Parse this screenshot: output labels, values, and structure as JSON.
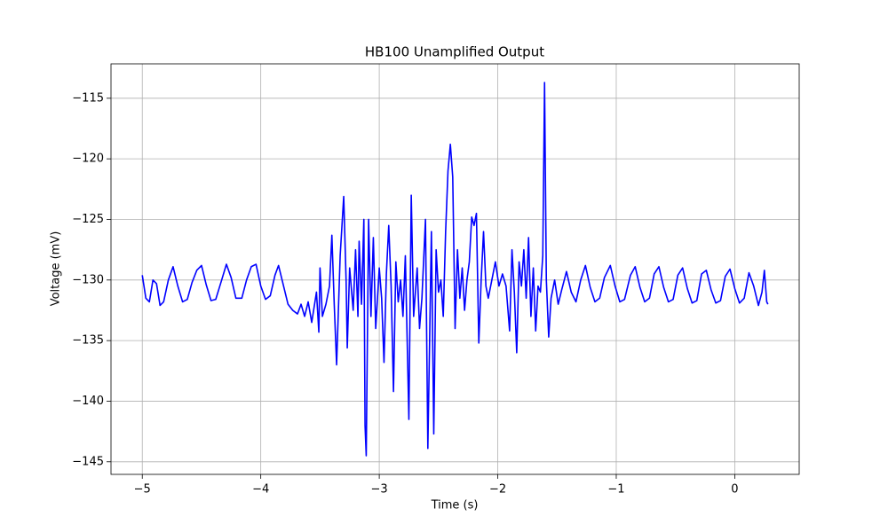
{
  "chart_data": {
    "type": "line",
    "title": "HB100 Unamplified Output",
    "x_label": "Time (s)",
    "y_label": "Voltage (mV)",
    "xlim": [
      -5.264,
      0.544
    ],
    "ylim": [
      -146.04,
      -112.16
    ],
    "xticks": [
      {
        "value": -5,
        "label": "−5"
      },
      {
        "value": -4,
        "label": "−4"
      },
      {
        "value": -3,
        "label": "−3"
      },
      {
        "value": -2,
        "label": "−2"
      },
      {
        "value": -1,
        "label": "−1"
      },
      0
    ],
    "yticks": [
      {
        "value": -145,
        "label": "−145"
      },
      {
        "value": -140,
        "label": "−140"
      },
      {
        "value": -135,
        "label": "−135"
      },
      {
        "value": -130,
        "label": "−130"
      },
      {
        "value": -125,
        "label": "−125"
      },
      {
        "value": -120,
        "label": "−120"
      },
      {
        "value": -115,
        "label": "−115"
      }
    ],
    "grid": true,
    "x": [
      -5.0,
      -4.97,
      -4.94,
      -4.91,
      -4.88,
      -4.85,
      -4.82,
      -4.78,
      -4.74,
      -4.7,
      -4.66,
      -4.62,
      -4.58,
      -4.54,
      -4.5,
      -4.46,
      -4.42,
      -4.38,
      -4.33,
      -4.29,
      -4.25,
      -4.21,
      -4.16,
      -4.12,
      -4.08,
      -4.04,
      -4.0,
      -3.96,
      -3.92,
      -3.88,
      -3.85,
      -3.81,
      -3.77,
      -3.73,
      -3.69,
      -3.66,
      -3.63,
      -3.6,
      -3.57,
      -3.53,
      -3.51,
      -3.5,
      -3.48,
      -3.45,
      -3.42,
      -3.4,
      -3.38,
      -3.36,
      -3.33,
      -3.3,
      -3.28,
      -3.27,
      -3.25,
      -3.22,
      -3.2,
      -3.18,
      -3.17,
      -3.15,
      -3.13,
      -3.12,
      -3.11,
      -3.09,
      -3.07,
      -3.05,
      -3.03,
      -3.0,
      -2.98,
      -2.96,
      -2.94,
      -2.92,
      -2.9,
      -2.88,
      -2.86,
      -2.84,
      -2.82,
      -2.8,
      -2.78,
      -2.75,
      -2.73,
      -2.71,
      -2.68,
      -2.66,
      -2.64,
      -2.61,
      -2.59,
      -2.56,
      -2.54,
      -2.52,
      -2.5,
      -2.48,
      -2.46,
      -2.44,
      -2.42,
      -2.4,
      -2.38,
      -2.36,
      -2.34,
      -2.32,
      -2.3,
      -2.28,
      -2.26,
      -2.24,
      -2.22,
      -2.2,
      -2.18,
      -2.16,
      -2.14,
      -2.12,
      -2.1,
      -2.08,
      -2.05,
      -2.02,
      -1.99,
      -1.96,
      -1.93,
      -1.9,
      -1.88,
      -1.86,
      -1.84,
      -1.82,
      -1.8,
      -1.78,
      -1.76,
      -1.74,
      -1.72,
      -1.7,
      -1.68,
      -1.66,
      -1.64,
      -1.62,
      -1.605,
      -1.59,
      -1.57,
      -1.55,
      -1.52,
      -1.49,
      -1.46,
      -1.42,
      -1.38,
      -1.34,
      -1.3,
      -1.26,
      -1.22,
      -1.18,
      -1.14,
      -1.1,
      -1.05,
      -1.01,
      -0.97,
      -0.93,
      -0.88,
      -0.84,
      -0.8,
      -0.76,
      -0.72,
      -0.68,
      -0.64,
      -0.6,
      -0.56,
      -0.52,
      -0.48,
      -0.44,
      -0.4,
      -0.36,
      -0.32,
      -0.28,
      -0.24,
      -0.2,
      -0.16,
      -0.12,
      -0.08,
      -0.04,
      0.0,
      0.04,
      0.08,
      0.12,
      0.16,
      0.2,
      0.23,
      0.25,
      0.27,
      0.28
    ],
    "series": [
      {
        "color": "#0000ff",
        "values": [
          -129.6,
          -131.5,
          -131.8,
          -130.0,
          -130.3,
          -132.1,
          -131.8,
          -130.0,
          -128.9,
          -130.5,
          -131.8,
          -131.6,
          -130.2,
          -129.2,
          -128.8,
          -130.4,
          -131.7,
          -131.6,
          -130.0,
          -128.7,
          -129.8,
          -131.5,
          -131.5,
          -130.0,
          -128.9,
          -128.7,
          -130.5,
          -131.6,
          -131.3,
          -129.6,
          -128.8,
          -130.4,
          -132.0,
          -132.5,
          -132.8,
          -132.0,
          -133.0,
          -131.8,
          -133.5,
          -131.0,
          -134.3,
          -129.0,
          -133.0,
          -132.0,
          -130.5,
          -126.3,
          -132.0,
          -137.0,
          -128.0,
          -123.1,
          -130.0,
          -135.6,
          -129.0,
          -132.5,
          -127.5,
          -133.0,
          -126.8,
          -132.0,
          -125.0,
          -142.0,
          -144.5,
          -125.0,
          -133.0,
          -126.5,
          -134.0,
          -129.0,
          -131.5,
          -136.8,
          -129.5,
          -125.5,
          -130.5,
          -139.2,
          -128.5,
          -131.8,
          -130.0,
          -133.0,
          -128.0,
          -141.5,
          -123.0,
          -133.0,
          -129.0,
          -134.0,
          -131.5,
          -125.0,
          -143.9,
          -126.0,
          -142.7,
          -127.5,
          -131.0,
          -130.0,
          -133.0,
          -126.0,
          -121.0,
          -118.8,
          -121.5,
          -134.0,
          -127.5,
          -131.5,
          -129.0,
          -132.5,
          -130.0,
          -128.5,
          -124.8,
          -125.5,
          -124.5,
          -135.2,
          -130.0,
          -126.0,
          -130.5,
          -131.5,
          -130.0,
          -128.5,
          -130.5,
          -129.5,
          -130.5,
          -134.2,
          -127.5,
          -131.0,
          -136.0,
          -128.5,
          -130.5,
          -127.5,
          -131.5,
          -126.5,
          -133.0,
          -129.0,
          -134.2,
          -130.5,
          -131.0,
          -128.0,
          -113.7,
          -130.0,
          -134.7,
          -131.5,
          -130.0,
          -132.0,
          -130.8,
          -129.3,
          -131.0,
          -131.8,
          -130.0,
          -128.8,
          -130.6,
          -131.8,
          -131.5,
          -129.8,
          -128.8,
          -130.5,
          -131.8,
          -131.6,
          -129.6,
          -128.9,
          -130.6,
          -131.8,
          -131.5,
          -129.5,
          -128.9,
          -130.6,
          -131.8,
          -131.6,
          -129.6,
          -129.0,
          -130.7,
          -131.9,
          -131.7,
          -129.5,
          -129.2,
          -130.8,
          -131.9,
          -131.7,
          -129.7,
          -129.1,
          -130.7,
          -131.9,
          -131.5,
          -129.4,
          -130.5,
          -132.1,
          -131.0,
          -129.2,
          -131.8,
          -132.0
        ]
      }
    ]
  }
}
